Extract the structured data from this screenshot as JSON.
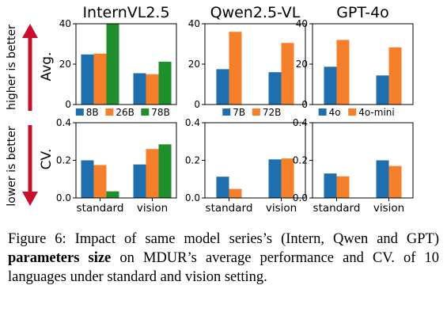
{
  "colors": {
    "blue": "#1f6fae",
    "orange": "#f57f2a",
    "green": "#1f8f2e",
    "arrow": "#c8102e"
  },
  "side_labels": {
    "top": "higher is better",
    "bottom": "lower is better"
  },
  "row_labels": [
    "Avg.",
    "CV."
  ],
  "caption": {
    "prefix": "Figure 6: Impact of same model series’s (Intern, Qwen and GPT) ",
    "bold": "parameters size",
    "suffix": " on MDUR’s average performance and CV. of 10 languages under standard and vision setting."
  },
  "chart_data": [
    {
      "title": "InternVL2.5",
      "row": "Avg.",
      "type": "bar",
      "categories": [
        "standard",
        "vision"
      ],
      "ylim": [
        0,
        40
      ],
      "yticks": [
        0,
        20,
        40
      ],
      "series": [
        {
          "name": "8B",
          "color": "#1f6fae",
          "values": [
            24.8,
            15.5
          ]
        },
        {
          "name": "26B",
          "color": "#f57f2a",
          "values": [
            25.2,
            15.0
          ]
        },
        {
          "name": "78B",
          "color": "#1f8f2e",
          "values": [
            40.2,
            21.2
          ]
        }
      ]
    },
    {
      "title": "Qwen2.5-VL",
      "row": "Avg.",
      "type": "bar",
      "categories": [
        "standard",
        "vision"
      ],
      "ylim": [
        0,
        40
      ],
      "yticks": [
        0,
        20,
        40
      ],
      "series": [
        {
          "name": "7B",
          "color": "#1f6fae",
          "values": [
            17.5,
            16.0
          ]
        },
        {
          "name": "72B",
          "color": "#f57f2a",
          "values": [
            36.0,
            30.5
          ]
        }
      ]
    },
    {
      "title": "GPT-4o",
      "row": "Avg.",
      "type": "bar",
      "categories": [
        "standard",
        "vision"
      ],
      "ylim": [
        0,
        40
      ],
      "yticks": [
        0,
        20,
        40
      ],
      "series": [
        {
          "name": "4o",
          "color": "#1f6fae",
          "values": [
            18.7,
            14.4
          ]
        },
        {
          "name": "4o-mini",
          "color": "#f57f2a",
          "values": [
            32.0,
            28.3
          ]
        }
      ]
    },
    {
      "title": "",
      "row": "CV.",
      "type": "bar",
      "categories": [
        "standard",
        "vision"
      ],
      "ylim": [
        0,
        0.4
      ],
      "yticks": [
        0.0,
        0.2,
        0.4
      ],
      "series": [
        {
          "name": "8B",
          "color": "#1f6fae",
          "values": [
            0.2,
            0.178
          ]
        },
        {
          "name": "26B",
          "color": "#f57f2a",
          "values": [
            0.175,
            0.26
          ]
        },
        {
          "name": "78B",
          "color": "#1f8f2e",
          "values": [
            0.035,
            0.285
          ]
        }
      ]
    },
    {
      "title": "",
      "row": "CV.",
      "type": "bar",
      "categories": [
        "standard",
        "vision"
      ],
      "ylim": [
        0,
        0.4
      ],
      "yticks": [
        0.0,
        0.2,
        0.4
      ],
      "series": [
        {
          "name": "7B",
          "color": "#1f6fae",
          "values": [
            0.113,
            0.205
          ]
        },
        {
          "name": "72B",
          "color": "#f57f2a",
          "values": [
            0.048,
            0.21
          ]
        }
      ]
    },
    {
      "title": "",
      "row": "CV.",
      "type": "bar",
      "categories": [
        "standard",
        "vision"
      ],
      "ylim": [
        0,
        0.4
      ],
      "yticks": [
        0.0,
        0.2,
        0.4
      ],
      "series": [
        {
          "name": "4o",
          "color": "#1f6fae",
          "values": [
            0.13,
            0.2
          ]
        },
        {
          "name": "4o-mini",
          "color": "#f57f2a",
          "values": [
            0.115,
            0.17
          ]
        }
      ]
    }
  ]
}
